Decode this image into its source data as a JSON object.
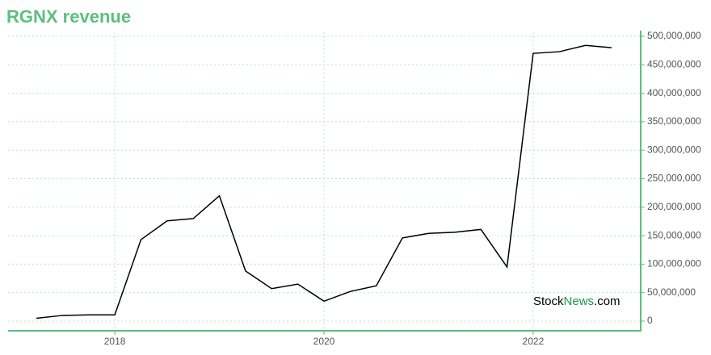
{
  "chart_data": {
    "type": "line",
    "title": "RGNX revenue",
    "categories": [
      null,
      null,
      null,
      "2018",
      null,
      null,
      null,
      null,
      null,
      null,
      null,
      "2020",
      null,
      null,
      null,
      null,
      null,
      null,
      null,
      "2022",
      null,
      null,
      null
    ],
    "series": [
      {
        "name": "revenue",
        "color": "#000000",
        "values": [
          5000000,
          10000000,
          11000000,
          11000000,
          143000000,
          176000000,
          180000000,
          220000000,
          88000000,
          57000000,
          65000000,
          35000000,
          52000000,
          62000000,
          146000000,
          154000000,
          156000000,
          161000000,
          95000000,
          470000000,
          473000000,
          484000000,
          480000000
        ]
      }
    ],
    "ylim": [
      0,
      500000000
    ],
    "yticks": [
      0,
      {
        "value": 50000000,
        "label": "50,000,000"
      },
      {
        "value": 100000000,
        "label": "100,000,000"
      },
      {
        "value": 150000000,
        "label": "150,000,000"
      },
      {
        "value": 200000000,
        "label": "200,000,000"
      },
      {
        "value": 250000000,
        "label": "250,000,000"
      },
      {
        "value": 300000000,
        "label": "300,000,000"
      },
      {
        "value": 350000000,
        "label": "350,000,000"
      },
      {
        "value": 400000000,
        "label": "400,000,000"
      },
      {
        "value": 450000000,
        "label": "450,000,000"
      },
      {
        "value": 500000000,
        "label": "500,000,000"
      }
    ],
    "grid": true,
    "axis_color": "#5cbf7f",
    "watermark": [
      "Stock",
      "News",
      ".com"
    ]
  }
}
